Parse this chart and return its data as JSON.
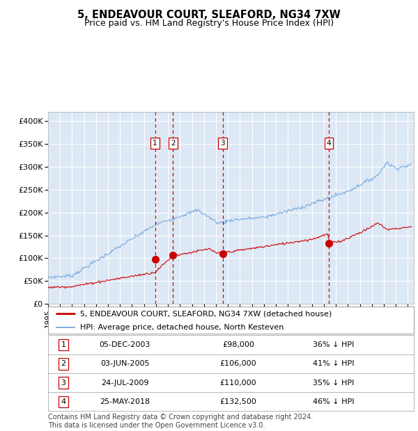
{
  "title1": "5, ENDEAVOUR COURT, SLEAFORD, NG34 7XW",
  "title2": "Price paid vs. HM Land Registry's House Price Index (HPI)",
  "ylim": [
    0,
    420000
  ],
  "yticks": [
    0,
    50000,
    100000,
    150000,
    200000,
    250000,
    300000,
    350000,
    400000
  ],
  "ytick_labels": [
    "£0",
    "£50K",
    "£100K",
    "£150K",
    "£200K",
    "£250K",
    "£300K",
    "£350K",
    "£400K"
  ],
  "background_color": "#ffffff",
  "plot_bg_color": "#dce8f5",
  "grid_color": "#ffffff",
  "red_line_color": "#cc0000",
  "blue_line_color": "#7aaadd",
  "sale_marker_color": "#cc0000",
  "vline_color": "#cc0000",
  "xlim_left": 1995.0,
  "xlim_right": 2025.5,
  "transactions": [
    {
      "num": 1,
      "price": 98000,
      "x_year": 2003.92
    },
    {
      "num": 2,
      "price": 106000,
      "x_year": 2005.42
    },
    {
      "num": 3,
      "price": 110000,
      "x_year": 2009.56
    },
    {
      "num": 4,
      "price": 132500,
      "x_year": 2018.4
    }
  ],
  "legend_entries": [
    "5, ENDEAVOUR COURT, SLEAFORD, NG34 7XW (detached house)",
    "HPI: Average price, detached house, North Kesteven"
  ],
  "table_rows": [
    [
      1,
      "05-DEC-2003",
      "£98,000",
      "36% ↓ HPI"
    ],
    [
      2,
      "03-JUN-2005",
      "£106,000",
      "41% ↓ HPI"
    ],
    [
      3,
      "24-JUL-2009",
      "£110,000",
      "35% ↓ HPI"
    ],
    [
      4,
      "25-MAY-2018",
      "£132,500",
      "46% ↓ HPI"
    ]
  ],
  "footer_lines": [
    "Contains HM Land Registry data © Crown copyright and database right 2024.",
    "This data is licensed under the Open Government Licence v3.0."
  ],
  "title_fontsize": 10.5,
  "subtitle_fontsize": 9,
  "tick_fontsize": 8,
  "legend_fontsize": 8,
  "table_fontsize": 8,
  "footer_fontsize": 7
}
